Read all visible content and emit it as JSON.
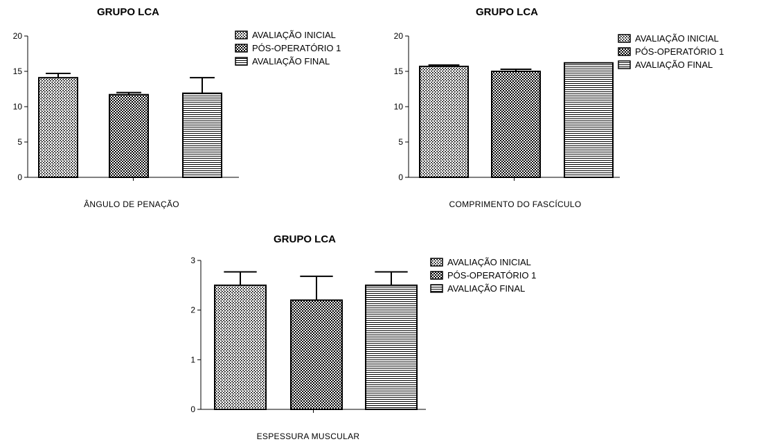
{
  "chart_data": [
    {
      "type": "bar",
      "title": "GRUPO LCA",
      "xlabel": "ÂNGULO DE PENAÇÃO",
      "ylabel": "",
      "ylim": [
        0,
        20
      ],
      "yticks": [
        0,
        5,
        10,
        15,
        20
      ],
      "series": [
        {
          "name": "AVALIAÇÃO INICIAL",
          "value": 14.1,
          "error": 0.6,
          "pattern": "dots"
        },
        {
          "name": "PÓS-OPERATÓRIO 1",
          "value": 11.7,
          "error": 0.3,
          "pattern": "checker"
        },
        {
          "name": "AVALIAÇÃO FINAL",
          "value": 11.9,
          "error": 2.2,
          "pattern": "hlines"
        }
      ],
      "legend": "top-right",
      "grid": false
    },
    {
      "type": "bar",
      "title": "GRUPO LCA",
      "xlabel": "COMPRIMENTO DO FASCÍCULO",
      "ylabel": "",
      "ylim": [
        0,
        20
      ],
      "yticks": [
        0,
        5,
        10,
        15,
        20
      ],
      "series": [
        {
          "name": "AVALIAÇÃO INICIAL",
          "value": 15.7,
          "error": 0.2,
          "pattern": "dots"
        },
        {
          "name": "PÓS-OPERATÓRIO 1",
          "value": 15.0,
          "error": 0.3,
          "pattern": "checker"
        },
        {
          "name": "AVALIAÇÃO FINAL",
          "value": 16.2,
          "error": 0.0,
          "pattern": "hlines"
        }
      ],
      "legend": "top-right",
      "grid": false
    },
    {
      "type": "bar",
      "title": "GRUPO LCA",
      "xlabel": "ESPESSURA MUSCULAR",
      "ylabel": "",
      "ylim": [
        0,
        3
      ],
      "yticks": [
        0,
        1,
        2,
        3
      ],
      "series": [
        {
          "name": "AVALIAÇÃO INICIAL",
          "value": 2.5,
          "error": 0.27,
          "pattern": "dots"
        },
        {
          "name": "PÓS-OPERATÓRIO 1",
          "value": 2.2,
          "error": 0.48,
          "pattern": "checker"
        },
        {
          "name": "AVALIAÇÃO FINAL",
          "value": 2.5,
          "error": 0.27,
          "pattern": "hlines"
        }
      ],
      "legend": "top-right",
      "grid": false
    }
  ]
}
